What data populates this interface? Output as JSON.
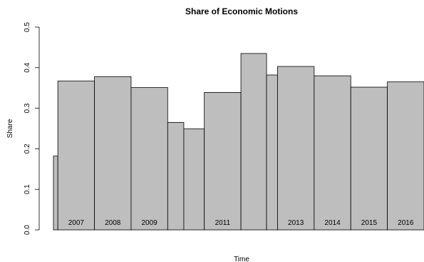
{
  "chart_data": {
    "type": "bar",
    "title": "Share of Economic Motions",
    "xlabel": "Time",
    "ylabel": "Share",
    "ylim": [
      0,
      0.5
    ],
    "yticks": [
      "0.0",
      "0.1",
      "0.2",
      "0.3",
      "0.4",
      "0.5"
    ],
    "grid": false,
    "bar_color": "#bebebe",
    "border_color": "#000000",
    "bars": [
      {
        "label": "",
        "value": 0.182,
        "width": 0.12
      },
      {
        "label": "2007",
        "value": 0.367,
        "width": 1.0
      },
      {
        "label": "2008",
        "value": 0.378,
        "width": 1.0
      },
      {
        "label": "2009",
        "value": 0.351,
        "width": 1.0
      },
      {
        "label": "",
        "value": 0.265,
        "width": 0.44
      },
      {
        "label": "",
        "value": 0.249,
        "width": 0.56
      },
      {
        "label": "2011",
        "value": 0.339,
        "width": 1.0
      },
      {
        "label": "",
        "value": 0.435,
        "width": 0.7
      },
      {
        "label": "",
        "value": 0.382,
        "width": 0.3
      },
      {
        "label": "2013",
        "value": 0.403,
        "width": 1.0
      },
      {
        "label": "2014",
        "value": 0.38,
        "width": 1.0
      },
      {
        "label": "2015",
        "value": 0.352,
        "width": 1.0
      },
      {
        "label": "2016",
        "value": 0.365,
        "width": 1.0
      }
    ]
  }
}
